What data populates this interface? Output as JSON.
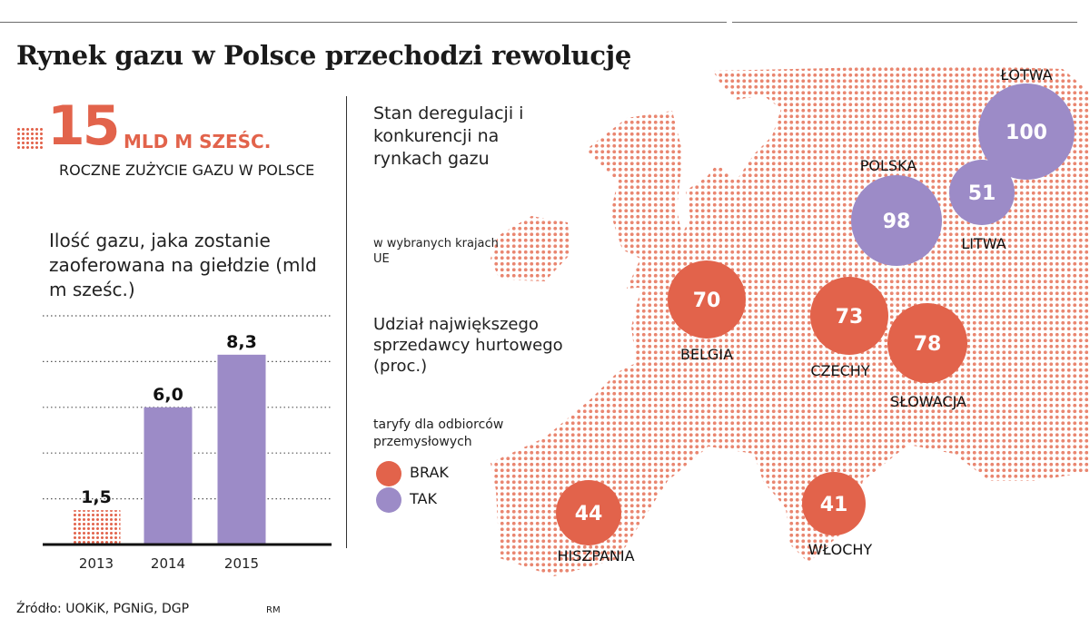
{
  "title": "Rynek gazu w Polsce przechodzi rewolucję",
  "headline_stat": {
    "value": "15",
    "unit": "MLD M SZEŚC.",
    "caption": "ROCZNE ZUŻYCIE GAZU W POLSCE"
  },
  "bar_section_title": "Ilość gazu, jaka zostanie zaoferowana na giełdzie (mld m sześc.)",
  "map_section": {
    "title": "Stan deregulacji i konkurencji na rynkach gazu",
    "subtitle": "w wybranych krajach UE",
    "measure": "Udział największego sprzedawcy hurtowego (proc.)",
    "legend_title": "taryfy dla odbiorców przemysłowych",
    "legend": [
      {
        "label": "BRAK",
        "color": "#e2634b"
      },
      {
        "label": "TAK",
        "color": "#9c8bc7"
      }
    ]
  },
  "source": "Źródło: UOKiK, PGNiG, DGP",
  "author": "RM",
  "colors": {
    "accent": "#e2634b",
    "purple": "#9c8bc7"
  },
  "chart_data": [
    {
      "type": "bar",
      "title": "Ilość gazu, jaka zostanie zaoferowana na giełdzie (mld m sześc.)",
      "categories": [
        "2013",
        "2014",
        "2015"
      ],
      "values": [
        1.5,
        6.0,
        8.3
      ],
      "value_labels": [
        "1,5",
        "6,0",
        "8,3"
      ],
      "ylim": [
        0,
        10
      ],
      "grid": "dotted horizontal",
      "bar_styles": [
        "dotted-orange",
        "solid-purple",
        "solid-purple"
      ]
    },
    {
      "type": "scatter",
      "title": "Udział największego sprzedawcy hurtowego (proc.)",
      "series": [
        {
          "name": "BRAK",
          "points": [
            {
              "country": "BELGIA",
              "value": 70
            },
            {
              "country": "CZECHY",
              "value": 73
            },
            {
              "country": "SŁOWACJA",
              "value": 78
            },
            {
              "country": "HISZPANIA",
              "value": 44
            },
            {
              "country": "WŁOCHY",
              "value": 41
            }
          ]
        },
        {
          "name": "TAK",
          "points": [
            {
              "country": "ŁOTWA",
              "value": 100
            },
            {
              "country": "POLSKA",
              "value": 98
            },
            {
              "country": "LITWA",
              "value": 51
            }
          ]
        }
      ]
    }
  ]
}
